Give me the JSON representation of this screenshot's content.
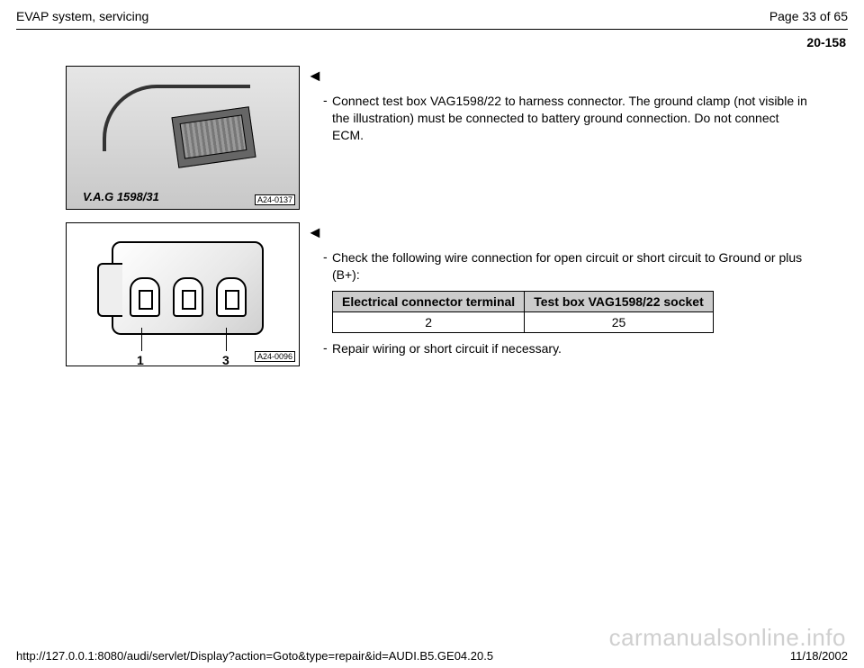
{
  "header": {
    "title": "EVAP system, servicing",
    "page_label": "Page 33 of 65"
  },
  "section_number": "20-158",
  "block1": {
    "arrow": "◄",
    "bullet1": "Connect test box VAG1598/22 to harness connector. The ground clamp (not visible in the illustration) must be connected to battery ground connection. Do not connect ECM.",
    "figure": {
      "tool_label": "V.A.G 1598/31",
      "image_code": "A24-0137"
    }
  },
  "block2": {
    "arrow": "◄",
    "bullet1": "Check the following wire connection for open circuit or short circuit to Ground or plus (B+):",
    "table": {
      "columns": [
        "Electrical connector terminal",
        "Test box VAG1598/22 socket"
      ],
      "rows": [
        [
          "2",
          "25"
        ]
      ],
      "header_bg": "#cccccc",
      "border_color": "#000000"
    },
    "bullet2": "Repair wiring or short circuit if necessary.",
    "figure": {
      "callouts": [
        "1",
        "3"
      ],
      "image_code": "A24-0096"
    }
  },
  "footer": {
    "url": "http://127.0.0.1:8080/audi/servlet/Display?action=Goto&type=repair&id=AUDI.B5.GE04.20.5",
    "date": "11/18/2002"
  },
  "watermark": "carmanualsonline.info",
  "colors": {
    "page_bg": "#ffffff",
    "text": "#000000",
    "table_header_bg": "#cccccc",
    "watermark": "#cfcfcf"
  }
}
